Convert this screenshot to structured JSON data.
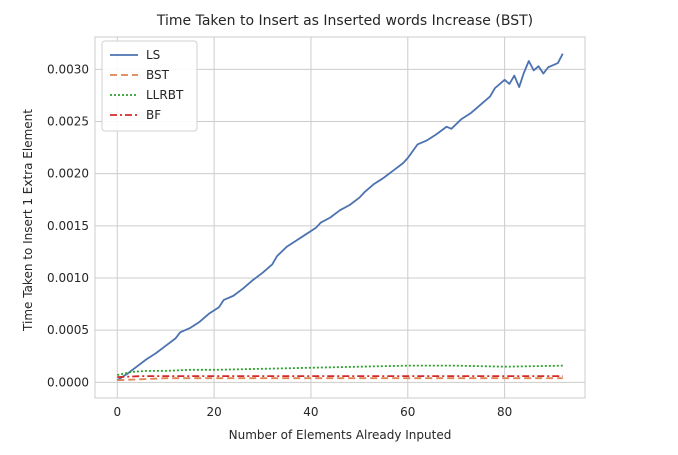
{
  "chart_data": {
    "type": "line",
    "title": "Time Taken to Insert as Inserted words Increase (BST)",
    "xlabel": "Number of Elements Already Inputed",
    "ylabel": "Time Taken to Insert 1 Extra Element",
    "xlim": [
      -4.6,
      96.6
    ],
    "ylim": [
      -0.00015,
      0.00331
    ],
    "xticks": [
      0,
      20,
      40,
      60,
      80
    ],
    "xtick_labels": [
      "0",
      "20",
      "40",
      "60",
      "80"
    ],
    "yticks": [
      0.0,
      0.0005,
      0.001,
      0.0015,
      0.002,
      0.0025,
      0.003
    ],
    "ytick_labels": [
      "0.0000",
      "0.0005",
      "0.0010",
      "0.0015",
      "0.0020",
      "0.0025",
      "0.0030"
    ],
    "grid": true,
    "legend_position": "top-left",
    "series": [
      {
        "name": "LS",
        "color": "#4c72b0",
        "style": "solid",
        "points": [
          [
            0,
            2e-05
          ],
          [
            2,
            8e-05
          ],
          [
            4,
            0.00015
          ],
          [
            6,
            0.00022
          ],
          [
            8,
            0.00028
          ],
          [
            10,
            0.00035
          ],
          [
            12,
            0.00042
          ],
          [
            13,
            0.00048
          ],
          [
            15,
            0.00052
          ],
          [
            17,
            0.00058
          ],
          [
            19,
            0.00066
          ],
          [
            21,
            0.00072
          ],
          [
            22,
            0.00079
          ],
          [
            24,
            0.00083
          ],
          [
            26,
            0.0009
          ],
          [
            28,
            0.00098
          ],
          [
            30,
            0.00105
          ],
          [
            32,
            0.00113
          ],
          [
            33,
            0.00121
          ],
          [
            35,
            0.0013
          ],
          [
            37,
            0.00136
          ],
          [
            39,
            0.00142
          ],
          [
            41,
            0.00148
          ],
          [
            42,
            0.00153
          ],
          [
            44,
            0.00158
          ],
          [
            46,
            0.00165
          ],
          [
            48,
            0.0017
          ],
          [
            50,
            0.00177
          ],
          [
            51,
            0.00182
          ],
          [
            53,
            0.0019
          ],
          [
            55,
            0.00196
          ],
          [
            57,
            0.00203
          ],
          [
            59,
            0.0021
          ],
          [
            60,
            0.00215
          ],
          [
            62,
            0.00228
          ],
          [
            64,
            0.00232
          ],
          [
            66,
            0.00238
          ],
          [
            68,
            0.00245
          ],
          [
            69,
            0.00243
          ],
          [
            71,
            0.00252
          ],
          [
            73,
            0.00258
          ],
          [
            75,
            0.00266
          ],
          [
            77,
            0.00274
          ],
          [
            78,
            0.00282
          ],
          [
            80,
            0.0029
          ],
          [
            81,
            0.00286
          ],
          [
            82,
            0.00294
          ],
          [
            83,
            0.00283
          ],
          [
            84,
            0.00297
          ],
          [
            85,
            0.00308
          ],
          [
            86,
            0.00299
          ],
          [
            87,
            0.00303
          ],
          [
            88,
            0.00296
          ],
          [
            89,
            0.00302
          ],
          [
            90,
            0.00304
          ],
          [
            91,
            0.00306
          ],
          [
            92,
            0.00315
          ]
        ]
      },
      {
        "name": "BST",
        "color": "#dd8452",
        "style": "dashed",
        "points": [
          [
            0,
            2e-05
          ],
          [
            10,
            4e-05
          ],
          [
            20,
            4e-05
          ],
          [
            40,
            4e-05
          ],
          [
            60,
            4e-05
          ],
          [
            80,
            4e-05
          ],
          [
            92,
            4e-05
          ]
        ]
      },
      {
        "name": "LLRBT",
        "color": "#2ca02c",
        "style": "dotted",
        "points": [
          [
            0,
            7e-05
          ],
          [
            3,
            0.0001
          ],
          [
            6,
            0.00011
          ],
          [
            10,
            0.00011
          ],
          [
            15,
            0.00012
          ],
          [
            20,
            0.00012
          ],
          [
            30,
            0.00013
          ],
          [
            40,
            0.00014
          ],
          [
            50,
            0.00015
          ],
          [
            60,
            0.00016
          ],
          [
            70,
            0.00016
          ],
          [
            80,
            0.00015
          ],
          [
            92,
            0.00016
          ]
        ]
      },
      {
        "name": "BF",
        "color": "#d62728",
        "style": "dashdot",
        "points": [
          [
            0,
            5e-05
          ],
          [
            5,
            6e-05
          ],
          [
            20,
            6e-05
          ],
          [
            40,
            6e-05
          ],
          [
            60,
            6e-05
          ],
          [
            80,
            6e-05
          ],
          [
            92,
            6e-05
          ]
        ]
      }
    ]
  }
}
